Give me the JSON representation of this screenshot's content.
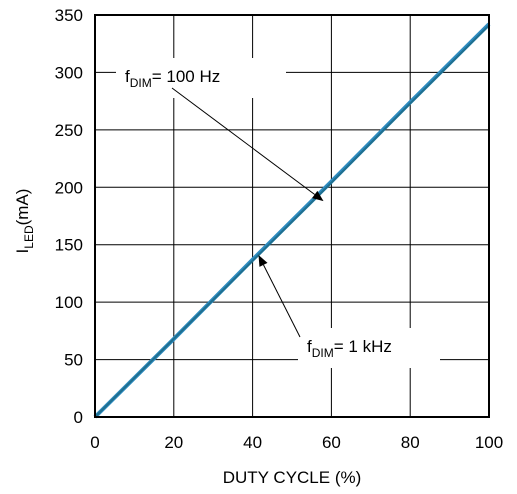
{
  "chart_data": {
    "type": "line",
    "xlabel": "DUTY CYCLE (%)",
    "ylabel": {
      "main": "I",
      "sub": "LED",
      "unit": "(mA)"
    },
    "xlim": [
      0,
      100
    ],
    "ylim": [
      0,
      350
    ],
    "x_ticks": [
      0,
      20,
      40,
      60,
      80,
      100
    ],
    "y_ticks": [
      0,
      50,
      100,
      150,
      200,
      250,
      300,
      350
    ],
    "grid": true,
    "series": [
      {
        "x": [
          0,
          20,
          40,
          60,
          80,
          100
        ],
        "values": [
          0,
          68,
          137,
          205,
          274,
          342
        ],
        "color": "#2e8bc0"
      },
      {
        "x": [
          0,
          20,
          40,
          60,
          80,
          100
        ],
        "values": [
          0,
          68,
          136,
          204,
          273,
          341
        ],
        "color": "#1f6f8f"
      }
    ],
    "annotations": [
      {
        "prefix": "f",
        "sub": "DIM",
        "suffix": "= 100 Hz",
        "target": [
          58,
          188
        ]
      },
      {
        "prefix": "f",
        "sub": "DIM",
        "suffix": "= 1 kHz",
        "target": [
          41.5,
          141
        ]
      }
    ]
  }
}
